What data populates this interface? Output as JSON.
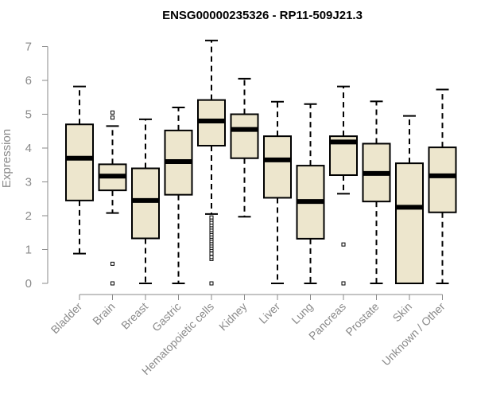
{
  "chart_data": {
    "type": "boxplot",
    "title": "ENSG00000235326 - RP11-509J21.3",
    "xlabel": "",
    "ylabel": "Expression",
    "ylim": [
      0,
      7.2
    ],
    "yticks": [
      0,
      1,
      2,
      3,
      4,
      5,
      6,
      7
    ],
    "box_color": "#ede6cd",
    "line_color": "#000000",
    "axis_color": "#8a8a8a",
    "categories": [
      "Bladder",
      "Brain",
      "Breast",
      "Gastric",
      "Hematopoietic cells",
      "Kidney",
      "Liver",
      "Lung",
      "Pancreas",
      "Prostate",
      "Skin",
      "Unknown / Other"
    ],
    "boxes": [
      {
        "label": "Bladder",
        "whisker_low": 0.88,
        "q1": 2.45,
        "median": 3.7,
        "q3": 4.7,
        "whisker_high": 5.82,
        "outliers": []
      },
      {
        "label": "Brain",
        "whisker_low": 2.08,
        "q1": 2.75,
        "median": 3.17,
        "q3": 3.52,
        "whisker_high": 4.65,
        "outliers": [
          0.0,
          0.58,
          4.9,
          5.05
        ]
      },
      {
        "label": "Breast",
        "whisker_low": 0.0,
        "q1": 1.33,
        "median": 2.45,
        "q3": 3.4,
        "whisker_high": 4.85,
        "outliers": []
      },
      {
        "label": "Gastric",
        "whisker_low": 0.0,
        "q1": 2.62,
        "median": 3.6,
        "q3": 4.52,
        "whisker_high": 5.2,
        "outliers": []
      },
      {
        "label": "Hematopoietic cells",
        "whisker_low": 2.05,
        "q1": 4.07,
        "median": 4.8,
        "q3": 5.42,
        "whisker_high": 7.18,
        "outliers": [
          0.0,
          0.72,
          0.78,
          0.88,
          0.98,
          1.05,
          1.12,
          1.18,
          1.25,
          1.32,
          1.38,
          1.45,
          1.52,
          1.58,
          1.65,
          1.72,
          1.8,
          1.88,
          1.95
        ]
      },
      {
        "label": "Kidney",
        "whisker_low": 1.97,
        "q1": 3.7,
        "median": 4.55,
        "q3": 5.0,
        "whisker_high": 6.05,
        "outliers": []
      },
      {
        "label": "Liver",
        "whisker_low": 0.0,
        "q1": 2.53,
        "median": 3.65,
        "q3": 4.35,
        "whisker_high": 5.37,
        "outliers": []
      },
      {
        "label": "Lung",
        "whisker_low": 0.0,
        "q1": 1.32,
        "median": 2.42,
        "q3": 3.48,
        "whisker_high": 5.3,
        "outliers": []
      },
      {
        "label": "Pancreas",
        "whisker_low": 2.65,
        "q1": 3.2,
        "median": 4.18,
        "q3": 4.35,
        "whisker_high": 5.82,
        "outliers": [
          0.0,
          1.15
        ]
      },
      {
        "label": "Prostate",
        "whisker_low": 0.0,
        "q1": 2.42,
        "median": 3.25,
        "q3": 4.13,
        "whisker_high": 5.38,
        "outliers": []
      },
      {
        "label": "Skin",
        "whisker_low": 0.0,
        "q1": 0.0,
        "median": 2.25,
        "q3": 3.55,
        "whisker_high": 4.95,
        "outliers": []
      },
      {
        "label": "Unknown / Other",
        "whisker_low": 0.0,
        "q1": 2.1,
        "median": 3.18,
        "q3": 4.02,
        "whisker_high": 5.73,
        "outliers": []
      }
    ]
  }
}
